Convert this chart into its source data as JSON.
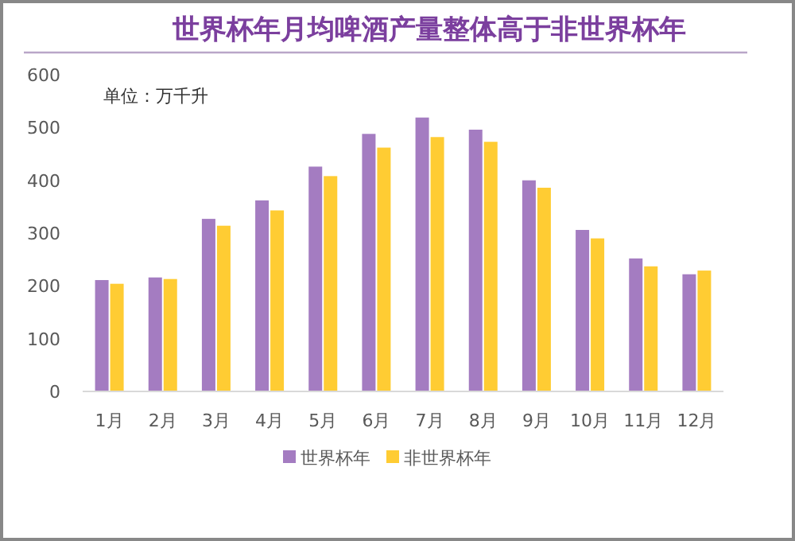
{
  "chart_data": {
    "type": "bar",
    "title": "世界杯年月均啤酒产量整体高于非世界杯年",
    "annotations": [
      "单位：万千升"
    ],
    "categories": [
      "1月",
      "2月",
      "3月",
      "4月",
      "5月",
      "6月",
      "7月",
      "8月",
      "9月",
      "10月",
      "11月",
      "12月"
    ],
    "series": [
      {
        "name": "世界杯年",
        "color": "#a47cc1",
        "values": [
          211,
          216,
          327,
          362,
          426,
          488,
          519,
          496,
          400,
          306,
          252,
          222
        ]
      },
      {
        "name": "非世界杯年",
        "color": "#ffcc33",
        "values": [
          204,
          213,
          314,
          343,
          408,
          462,
          482,
          473,
          386,
          290,
          237,
          229
        ]
      }
    ],
    "ylim": [
      0,
      600
    ],
    "yticks": [
      0,
      100,
      200,
      300,
      400,
      500,
      600
    ],
    "grid": false,
    "legend": "bottom"
  }
}
